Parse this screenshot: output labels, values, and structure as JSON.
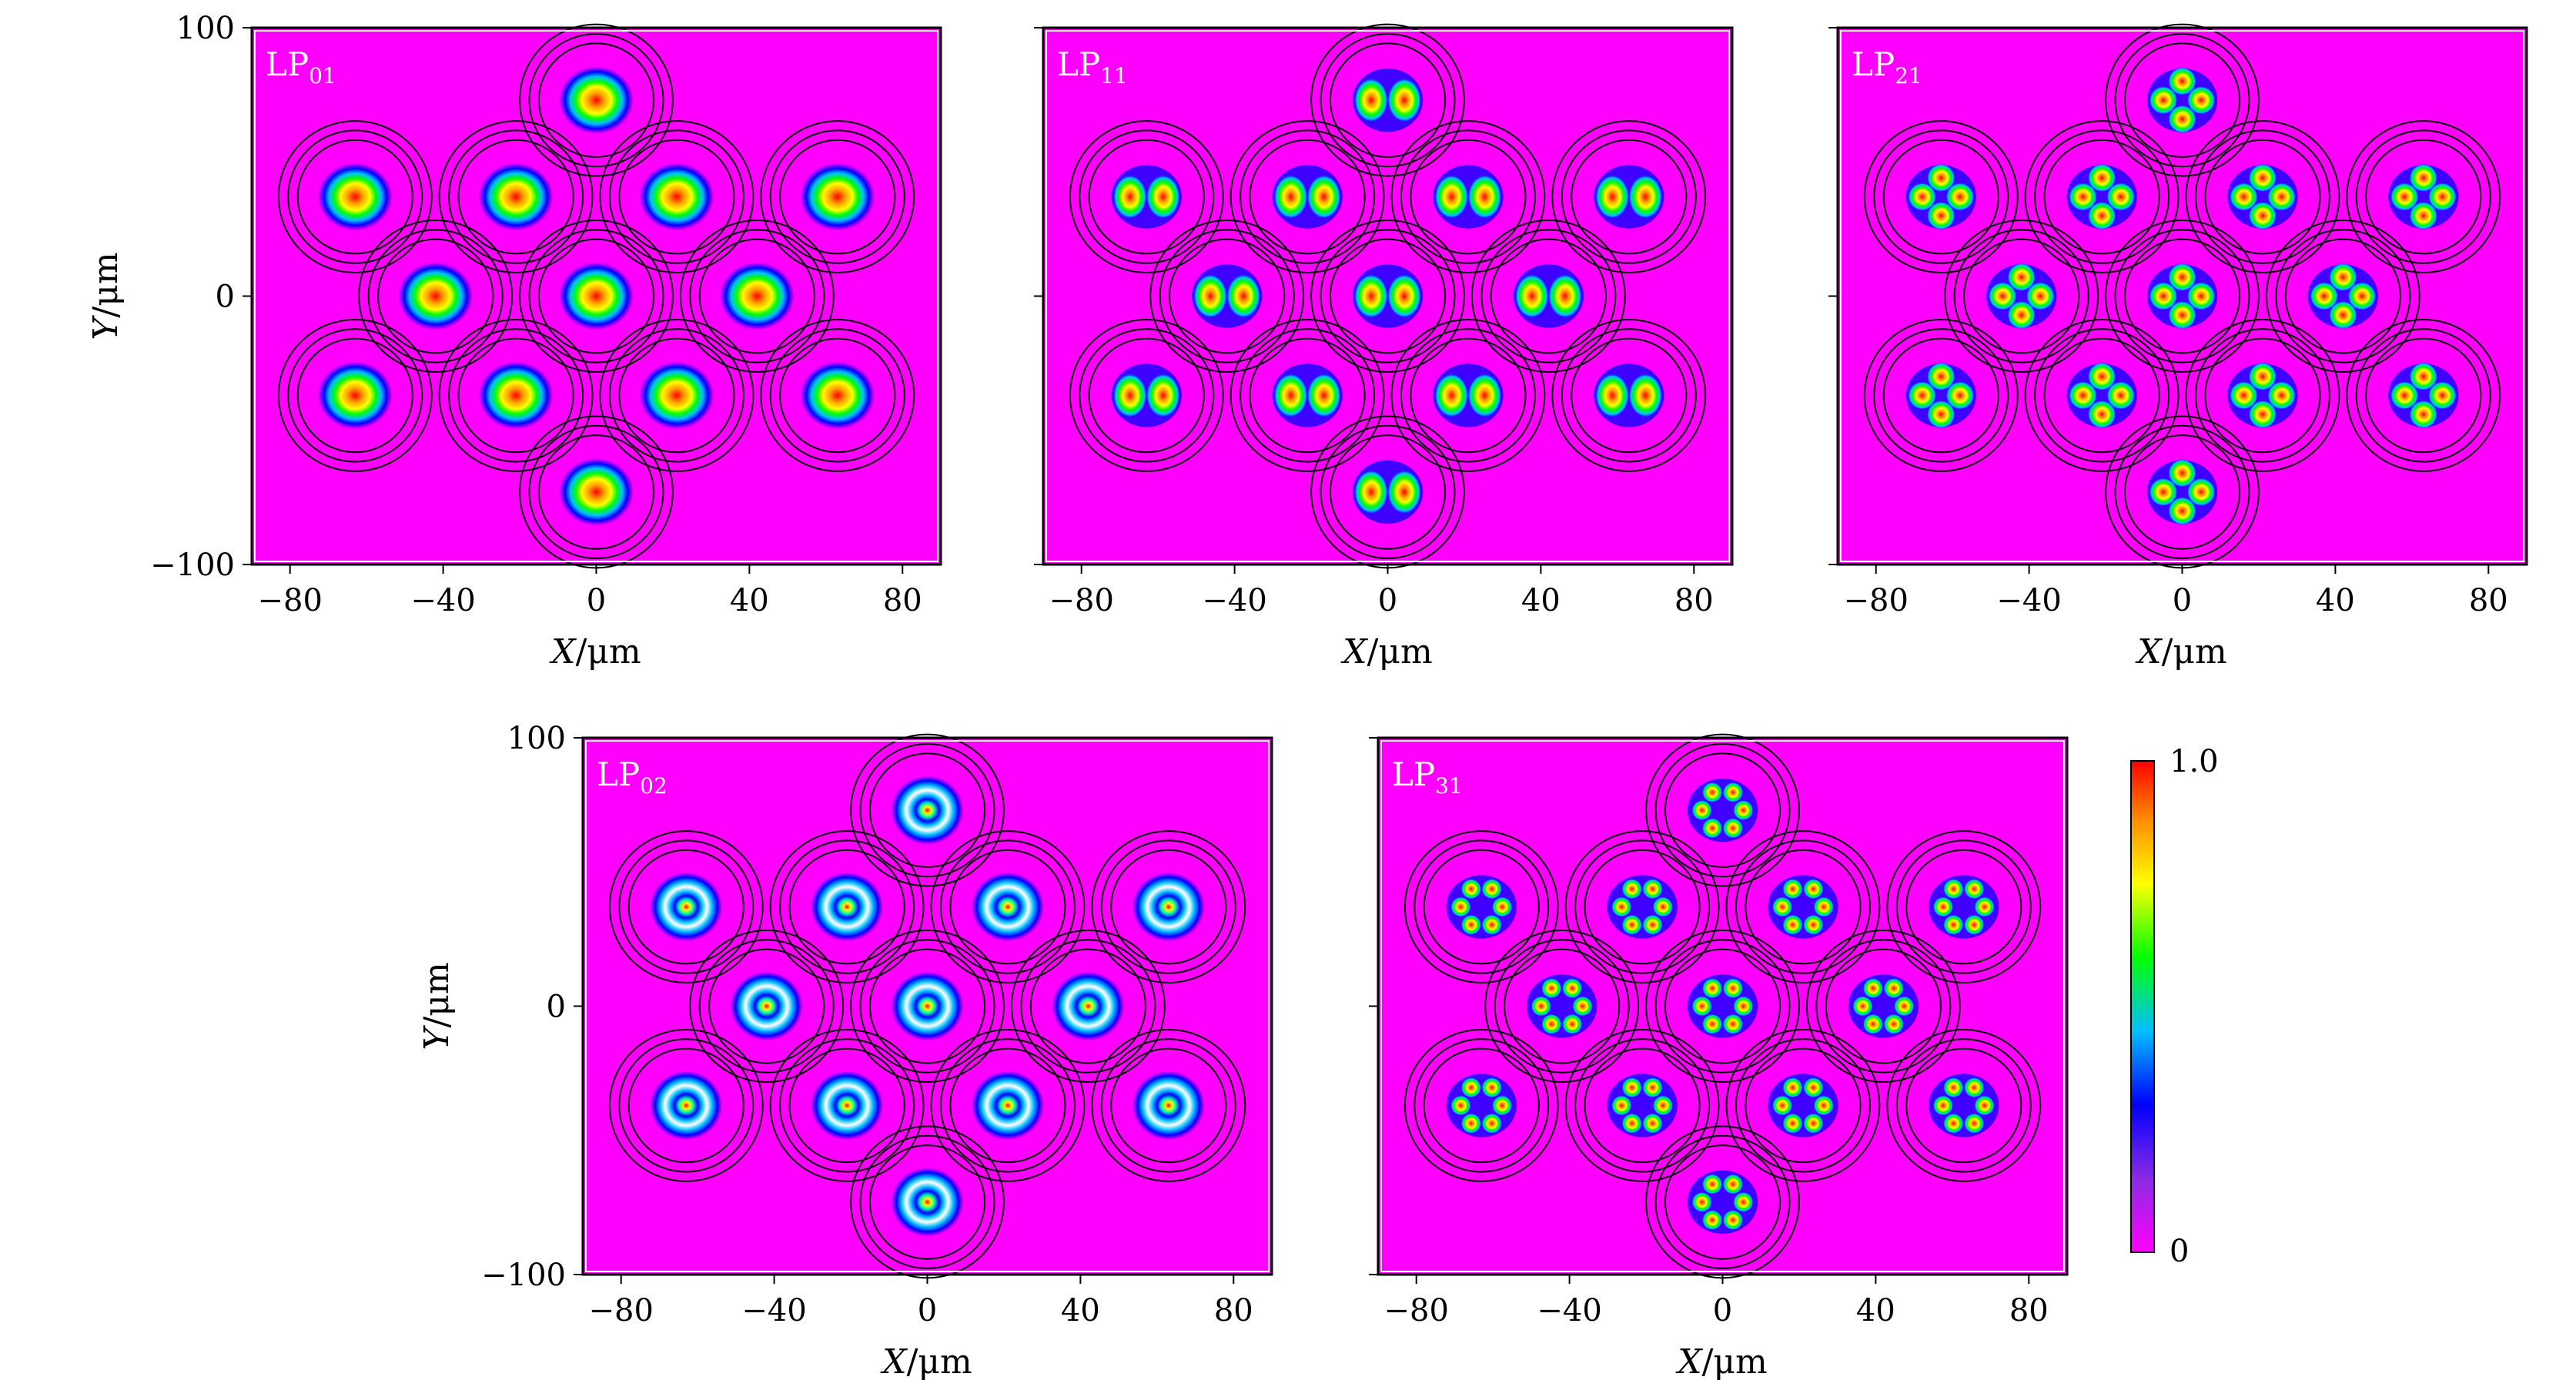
{
  "figure": {
    "colorbar": {
      "max_label": "1.0",
      "min_label": "0",
      "colormap": "purple-blue-green-yellow-red",
      "colors": [
        "#ff00ff",
        "#8a2be2",
        "#0000ff",
        "#00bfff",
        "#00ff00",
        "#ffff00",
        "#ff8c00",
        "#ff0000"
      ]
    },
    "background_color": "#ff00ff"
  },
  "chart_data": [
    {
      "type": "heatmap",
      "mode": "LP01",
      "mode_base": "LP",
      "mode_sub": "01",
      "xlabel_var": "X",
      "ylabel_var": "Y",
      "unit": "/μm",
      "xlim": [
        -90,
        90
      ],
      "ylim": [
        -100,
        100
      ],
      "xticks": [
        -80,
        -40,
        0,
        40,
        80
      ],
      "xtick_labels": [
        "−80",
        "−40",
        "0",
        "40",
        "80"
      ],
      "yticks": [
        -100,
        0,
        100
      ],
      "ytick_labels": [
        "−100",
        "0",
        "100"
      ],
      "show_y_labels": true,
      "core_centers": [
        [
          0,
          73
        ],
        [
          -63,
          37
        ],
        [
          -21,
          37
        ],
        [
          21,
          37
        ],
        [
          63,
          37
        ],
        [
          -42,
          0
        ],
        [
          0,
          0
        ],
        [
          42,
          0
        ],
        [
          -63,
          -37
        ],
        [
          -21,
          -37
        ],
        [
          21,
          -37
        ],
        [
          63,
          -37
        ],
        [
          0,
          -73
        ]
      ]
    },
    {
      "type": "heatmap",
      "mode": "LP11",
      "mode_base": "LP",
      "mode_sub": "11",
      "xlabel_var": "X",
      "ylabel_var": "",
      "unit": "/μm",
      "xlim": [
        -90,
        90
      ],
      "ylim": [
        -100,
        100
      ],
      "xticks": [
        -80,
        -40,
        0,
        40,
        80
      ],
      "xtick_labels": [
        "−80",
        "−40",
        "0",
        "40",
        "80"
      ],
      "yticks": [
        -100,
        0,
        100
      ],
      "ytick_labels": [],
      "show_y_labels": false,
      "core_centers": [
        [
          0,
          73
        ],
        [
          -63,
          37
        ],
        [
          -21,
          37
        ],
        [
          21,
          37
        ],
        [
          63,
          37
        ],
        [
          -42,
          0
        ],
        [
          0,
          0
        ],
        [
          42,
          0
        ],
        [
          -63,
          -37
        ],
        [
          -21,
          -37
        ],
        [
          21,
          -37
        ],
        [
          63,
          -37
        ],
        [
          0,
          -73
        ]
      ]
    },
    {
      "type": "heatmap",
      "mode": "LP21",
      "mode_base": "LP",
      "mode_sub": "21",
      "xlabel_var": "X",
      "ylabel_var": "",
      "unit": "/μm",
      "xlim": [
        -90,
        90
      ],
      "ylim": [
        -100,
        100
      ],
      "xticks": [
        -80,
        -40,
        0,
        40,
        80
      ],
      "xtick_labels": [
        "−80",
        "−40",
        "0",
        "40",
        "80"
      ],
      "yticks": [
        -100,
        0,
        100
      ],
      "ytick_labels": [],
      "show_y_labels": false,
      "core_centers": [
        [
          0,
          73
        ],
        [
          -63,
          37
        ],
        [
          -21,
          37
        ],
        [
          21,
          37
        ],
        [
          63,
          37
        ],
        [
          -42,
          0
        ],
        [
          0,
          0
        ],
        [
          42,
          0
        ],
        [
          -63,
          -37
        ],
        [
          -21,
          -37
        ],
        [
          21,
          -37
        ],
        [
          63,
          -37
        ],
        [
          0,
          -73
        ]
      ]
    },
    {
      "type": "heatmap",
      "mode": "LP02",
      "mode_base": "LP",
      "mode_sub": "02",
      "xlabel_var": "X",
      "ylabel_var": "Y",
      "unit": "/μm",
      "xlim": [
        -90,
        90
      ],
      "ylim": [
        -100,
        100
      ],
      "xticks": [
        -80,
        -40,
        0,
        40,
        80
      ],
      "xtick_labels": [
        "−80",
        "−40",
        "0",
        "40",
        "80"
      ],
      "yticks": [
        -100,
        0,
        100
      ],
      "ytick_labels": [
        "−100",
        "0",
        "100"
      ],
      "show_y_labels": true,
      "core_centers": [
        [
          0,
          73
        ],
        [
          -63,
          37
        ],
        [
          -21,
          37
        ],
        [
          21,
          37
        ],
        [
          63,
          37
        ],
        [
          -42,
          0
        ],
        [
          0,
          0
        ],
        [
          42,
          0
        ],
        [
          -63,
          -37
        ],
        [
          -21,
          -37
        ],
        [
          21,
          -37
        ],
        [
          63,
          -37
        ],
        [
          0,
          -73
        ]
      ]
    },
    {
      "type": "heatmap",
      "mode": "LP31",
      "mode_base": "LP",
      "mode_sub": "31",
      "xlabel_var": "X",
      "ylabel_var": "",
      "unit": "/μm",
      "xlim": [
        -90,
        90
      ],
      "ylim": [
        -100,
        100
      ],
      "xticks": [
        -80,
        -40,
        0,
        40,
        80
      ],
      "xtick_labels": [
        "−80",
        "−40",
        "0",
        "40",
        "80"
      ],
      "yticks": [
        -100,
        0,
        100
      ],
      "ytick_labels": [],
      "show_y_labels": false,
      "core_centers": [
        [
          0,
          73
        ],
        [
          -63,
          37
        ],
        [
          -21,
          37
        ],
        [
          21,
          37
        ],
        [
          63,
          37
        ],
        [
          -42,
          0
        ],
        [
          0,
          0
        ],
        [
          42,
          0
        ],
        [
          -63,
          -37
        ],
        [
          -21,
          -37
        ],
        [
          21,
          -37
        ],
        [
          63,
          -37
        ],
        [
          0,
          -73
        ]
      ]
    }
  ]
}
